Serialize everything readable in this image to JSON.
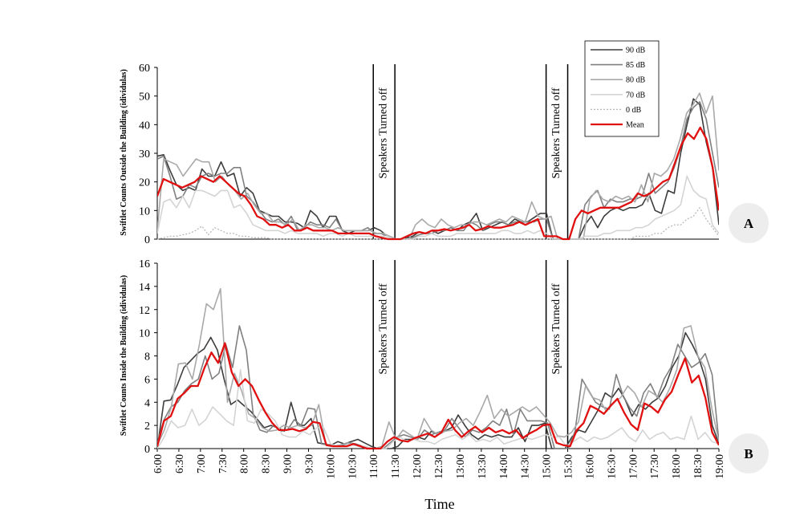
{
  "colors": {
    "s90": "#3d3d3d",
    "s85": "#808080",
    "s80": "#a9a9a9",
    "s70": "#d4d4d4",
    "s0": "#b8b8b8",
    "mean": "#e01010",
    "badge_bg": "#ededed"
  },
  "legend": {
    "items": [
      "90 dB",
      "85 dB",
      "80 dB",
      "70 dB",
      "0 dB",
      "Mean"
    ]
  },
  "x_label": "Time",
  "chart_data": [
    {
      "id": "A",
      "type": "line",
      "badge": "A",
      "ylabel": "Swiftlet Counts Outside the Building (idividulas)",
      "ylim": [
        0,
        60
      ],
      "yticks": [
        0,
        10,
        20,
        30,
        40,
        50,
        60
      ],
      "x_range": [
        "6:00",
        "19:00"
      ],
      "x_ticks": [
        "6:00",
        "6:30",
        "7:00",
        "7:30",
        "8:00",
        "8:30",
        "9:00",
        "9:30",
        "10:00",
        "10:30",
        "11:00",
        "11:30",
        "12:00",
        "12:30",
        "13:00",
        "13:30",
        "14:00",
        "14:30",
        "15:00",
        "15:30",
        "16:00",
        "16:30",
        "17:00",
        "17:30",
        "18:00",
        "18:30",
        "19:00"
      ],
      "annotations": [
        {
          "text": "Speakers Turned off",
          "from": "11:00",
          "to": "11:30"
        },
        {
          "text": "Speakers Turned off",
          "from": "15:00",
          "to": "15:30"
        }
      ],
      "series": [
        {
          "name": "90 dB",
          "values": [
            29,
            29.5,
            24,
            19,
            17,
            18,
            17,
            24.5,
            22,
            22,
            27,
            22,
            23,
            15,
            18,
            16,
            10,
            9,
            8,
            8,
            6,
            6,
            5.5,
            4,
            10,
            8,
            4,
            8,
            8,
            3,
            2,
            3,
            3,
            3,
            4,
            3,
            1,
            0,
            0,
            0.5,
            1,
            2.5,
            2,
            3,
            2,
            3,
            4,
            3,
            5,
            6,
            9,
            3,
            4,
            5,
            6,
            5,
            7,
            6,
            6,
            7.5,
            9,
            9,
            0,
            0,
            0,
            0,
            0,
            5,
            8,
            4,
            8,
            10,
            11,
            10,
            11,
            11,
            12,
            16,
            10,
            9,
            17,
            16,
            30,
            40,
            49,
            47,
            34,
            25,
            5
          ]
        },
        {
          "name": "85 dB",
          "values": [
            28,
            29,
            22,
            14,
            15,
            19,
            18,
            22,
            23,
            22,
            23,
            23,
            25,
            25,
            15,
            13,
            10,
            7,
            6,
            7,
            5,
            8,
            3,
            4,
            6,
            5,
            5,
            4,
            7,
            3,
            3,
            3,
            3,
            4,
            2,
            2,
            1,
            0,
            0,
            0,
            0.5,
            1.5,
            2,
            2,
            3,
            3,
            4,
            3,
            3,
            6,
            5,
            3,
            5,
            6,
            6,
            5,
            6,
            6,
            6,
            6,
            7,
            7,
            0,
            0,
            0,
            0,
            0,
            12,
            15,
            17,
            11,
            14,
            13,
            13,
            14,
            14,
            15,
            23,
            16,
            18,
            20,
            25,
            32,
            42,
            46,
            48,
            42,
            30,
            18
          ]
        },
        {
          "name": "80 dB",
          "values": [
            3,
            28,
            27,
            26,
            22,
            25,
            28,
            27,
            27,
            20,
            22,
            19,
            17,
            14,
            16,
            12,
            9,
            9,
            6,
            6,
            5,
            7,
            3,
            5,
            5,
            4,
            4,
            3,
            4,
            3,
            3,
            3,
            3,
            3,
            2,
            2,
            1,
            0,
            0,
            0,
            5,
            7,
            5,
            4,
            7,
            5,
            4,
            5,
            5,
            6,
            6,
            5,
            6,
            7,
            6,
            8,
            7,
            6,
            13,
            8,
            7,
            8,
            0,
            0,
            0,
            0,
            0,
            14,
            17,
            14,
            13,
            15,
            14,
            15,
            13,
            19,
            13,
            23,
            22,
            24,
            28,
            35,
            44,
            47,
            51,
            44,
            50,
            24
          ]
        },
        {
          "name": "70 dB",
          "values": [
            2,
            13,
            14,
            11,
            15,
            11,
            17,
            17,
            16,
            15,
            17,
            17,
            11,
            12,
            9,
            5,
            4,
            3,
            3,
            3,
            2,
            3,
            2,
            2,
            2,
            2,
            1,
            2,
            2,
            1,
            2,
            1,
            1,
            1,
            1,
            1,
            1,
            0,
            0,
            0,
            0,
            1,
            1,
            2,
            1,
            1,
            1,
            2,
            2,
            2,
            2,
            2,
            2,
            2,
            3,
            3,
            2,
            2,
            3,
            2,
            3,
            2,
            0,
            0,
            0,
            0,
            0,
            1,
            1,
            1,
            2,
            2,
            3,
            3,
            3,
            4,
            4,
            5,
            7,
            8,
            9,
            10,
            12,
            22,
            17,
            15,
            14,
            5,
            2
          ]
        },
        {
          "name": "0 dB",
          "values": [
            0,
            0.5,
            1,
            1,
            1.5,
            2,
            3,
            4.5,
            1.5,
            4,
            3,
            2,
            2,
            1,
            1,
            0.5,
            0.5,
            0.5,
            0,
            0,
            0,
            0,
            0,
            0,
            0,
            0,
            0,
            0,
            0,
            0,
            0,
            0,
            0,
            0,
            0,
            0,
            0,
            0,
            0,
            0,
            0,
            0,
            0,
            0,
            0,
            0,
            0,
            0,
            0,
            0,
            0,
            0,
            0,
            0,
            0,
            0,
            0,
            0,
            0,
            0,
            0,
            0,
            0,
            0,
            0,
            0,
            0,
            0,
            0,
            0,
            0,
            0,
            0,
            0,
            0,
            1,
            1,
            1,
            2,
            2,
            4,
            5,
            5,
            7,
            8,
            11,
            7,
            4,
            1
          ]
        },
        {
          "name": "Mean",
          "values": [
            15,
            21,
            20,
            19,
            18,
            19,
            20,
            22,
            21,
            20,
            22,
            20,
            18,
            16,
            15,
            12,
            8,
            7,
            5,
            5,
            4,
            5,
            3,
            3,
            4,
            3,
            3,
            3,
            3,
            2,
            2,
            2,
            2,
            2,
            2,
            1,
            0.5,
            0,
            0,
            0,
            1,
            2,
            2.5,
            2,
            3,
            3,
            3.5,
            3,
            3.5,
            4,
            5,
            3,
            3.5,
            4.5,
            4,
            4,
            4.5,
            5,
            6,
            5,
            6,
            7,
            1,
            1,
            1,
            0,
            0,
            7,
            10,
            9,
            10,
            11,
            11,
            11,
            11,
            12,
            13,
            16,
            15,
            16,
            18,
            20,
            21,
            27,
            33,
            37,
            35,
            39,
            35,
            25,
            10
          ]
        }
      ]
    },
    {
      "id": "B",
      "type": "line",
      "badge": "B",
      "ylabel": "Swiftlet Counts Inside the Building (idividulas)",
      "ylim": [
        0,
        16
      ],
      "yticks": [
        0,
        2,
        4,
        6,
        8,
        10,
        12,
        14,
        16
      ],
      "x_range": [
        "6:00",
        "19:00"
      ],
      "x_ticks": [
        "6:00",
        "6:30",
        "7:00",
        "7:30",
        "8:00",
        "8:30",
        "9:00",
        "9:30",
        "10:00",
        "10:30",
        "11:00",
        "11:30",
        "12:00",
        "12:30",
        "13:00",
        "13:30",
        "14:00",
        "14:30",
        "15:00",
        "15:30",
        "16:00",
        "16:30",
        "17:00",
        "17:30",
        "18:00",
        "18:30",
        "19:00"
      ],
      "annotations": [
        {
          "text": "Speakers Turned off",
          "from": "11:00",
          "to": "11:30"
        },
        {
          "text": "Speakers Turned off",
          "from": "15:00",
          "to": "15:30"
        }
      ],
      "series": [
        {
          "name": "90 dB",
          "values": [
            0,
            4.1,
            4.2,
            5.5,
            7,
            7.6,
            8.2,
            8.6,
            9.6,
            8.5,
            6,
            3.8,
            4.2,
            3.7,
            3.2,
            2.5,
            1.8,
            2,
            1.8,
            1.5,
            4,
            2,
            2,
            2.6,
            0.5,
            0.4,
            0.3,
            0.6,
            0.4,
            0.6,
            0.8,
            0.5,
            0.2,
            0,
            0,
            0,
            0.2,
            0.8,
            0.8,
            1,
            0.8,
            1.5,
            1.2,
            1.5,
            1.8,
            2.9,
            2,
            1.2,
            0.8,
            1.2,
            1,
            1.2,
            1,
            1,
            1.8,
            0.6,
            2,
            2,
            2.2,
            0,
            0,
            0,
            1,
            1.6,
            1.4,
            2.4,
            3.4,
            4.8,
            4.4,
            5.2,
            4.2,
            2.8,
            3.8,
            3.4,
            4,
            4.4,
            5.4,
            7,
            8,
            10,
            9,
            7.8,
            6,
            2,
            0.4
          ]
        },
        {
          "name": "85 dB",
          "values": [
            0.5,
            2.5,
            3.6,
            4,
            5,
            5.6,
            6,
            8,
            6,
            6.5,
            9,
            7,
            10.6,
            8.5,
            3,
            1.6,
            1.4,
            2,
            1.5,
            1.6,
            2.5,
            2,
            3.5,
            3.4,
            0.4,
            0.3,
            0.2,
            0.3,
            0.5,
            0.4,
            0.2,
            0,
            0,
            0,
            0.5,
            1,
            1.2,
            1,
            0.8,
            1.6,
            1.2,
            1.4,
            1.6,
            2.6,
            1.8,
            1,
            1.6,
            1.4,
            1.8,
            2.4,
            2,
            3.4,
            1.2,
            3.4,
            2.4,
            2.4,
            2.4,
            2.2,
            0,
            0,
            0,
            1.5,
            6,
            5,
            4,
            3.6,
            3.4,
            6.4,
            4.6,
            3.5,
            2.8,
            4.8,
            5.6,
            4.4,
            6,
            7,
            9,
            8,
            7,
            7.4,
            8.2,
            6.4,
            0.6
          ]
        },
        {
          "name": "80 dB",
          "values": [
            0.3,
            1.6,
            3.6,
            7.3,
            7.4,
            6,
            9,
            12.5,
            12,
            13.8,
            4,
            6.5,
            5,
            3,
            2.6,
            1.8,
            1.5,
            1.6,
            2,
            1.8,
            2,
            1.8,
            2,
            3.8,
            0.4,
            0.2,
            0.3,
            0.5,
            0.3,
            0.2,
            0,
            0,
            0.2,
            2.3,
            0.8,
            1.6,
            1.2,
            0.8,
            2.6,
            1.6,
            1.2,
            1.5,
            1.6,
            2.2,
            2.6,
            2,
            3.2,
            4.6,
            2.6,
            3.4,
            2.8,
            3.2,
            3.6,
            3.2,
            3.6,
            2.9,
            2.2,
            1.1,
            1,
            1.4,
            2.3,
            5.4,
            4.4,
            4.2,
            3.2,
            4,
            4.4,
            5.4,
            4.8,
            3.6,
            5,
            4.6,
            4,
            5.2,
            6.8,
            10.4,
            10.6,
            8,
            7,
            3.4,
            0.6
          ]
        },
        {
          "name": "70 dB",
          "values": [
            0,
            1,
            2.4,
            1.8,
            2,
            3.4,
            2,
            2.5,
            3.6,
            3,
            2.4,
            2,
            6.8,
            2.4,
            2.2,
            3.4,
            3,
            2.4,
            1.2,
            1,
            1,
            1.5,
            1.2,
            1.8,
            1.8,
            0.4,
            0.2,
            0.2,
            0.4,
            0.2,
            0.2,
            0,
            0,
            0,
            0.6,
            1,
            0.6,
            0.8,
            0.6,
            0.6,
            0.4,
            0.8,
            1,
            1.2,
            0.8,
            1.2,
            0.6,
            0.8,
            0.6,
            1,
            0.4,
            0.6,
            0.8,
            1,
            0.8,
            1,
            1.2,
            1,
            1,
            0.2,
            0.6,
            1,
            0.6,
            1,
            0.8,
            1,
            1.4,
            1.8,
            1,
            0.6,
            1.6,
            0.8,
            1.2,
            1.4,
            0.8,
            1,
            0.8,
            2.8,
            0.8,
            1.4,
            0.6,
            0.4
          ]
        },
        {
          "name": "Mean",
          "values": [
            0.2,
            2.4,
            2.8,
            4.3,
            4.8,
            5.4,
            5.4,
            7,
            8.3,
            7.4,
            9.1,
            6.6,
            5.4,
            6,
            5.4,
            4.2,
            3.1,
            2.2,
            1.6,
            1.6,
            1.7,
            1.5,
            1.7,
            2.3,
            2.2,
            0.3,
            0.2,
            0.2,
            0.2,
            0.4,
            0.2,
            0,
            0,
            0,
            0.6,
            1,
            0.7,
            0.6,
            0.9,
            1.1,
            1.3,
            1,
            1.4,
            2.5,
            1.6,
            1,
            1.5,
            1.9,
            1.4,
            1.8,
            1.4,
            1.6,
            1.3,
            1.6,
            0.9,
            1.3,
            1.6,
            2,
            2.1,
            0.5,
            0.3,
            0.2,
            1.6,
            2.2,
            3.7,
            3.4,
            3,
            3.7,
            4.3,
            3.1,
            2.1,
            1.6,
            3.9,
            3.6,
            3.1,
            4.2,
            4.9,
            6.4,
            7.8,
            5.7,
            6.3,
            4.4,
            1.4,
            0.3
          ]
        }
      ]
    }
  ]
}
